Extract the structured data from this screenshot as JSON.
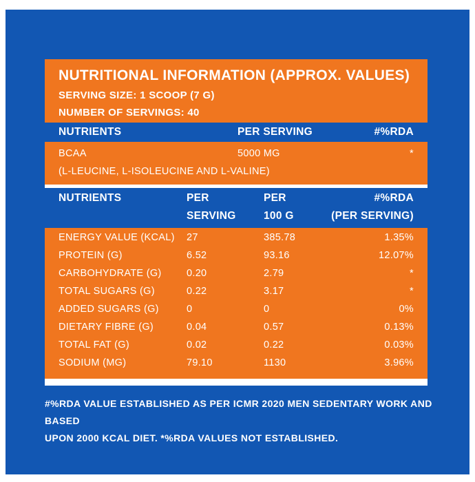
{
  "header": {
    "title": "NUTRITIONAL INFORMATION (APPROX. VALUES)",
    "serving_size": "SERVING SIZE: 1 SCOOP (7 G)",
    "servings": "NUMBER OF SERVINGS: 40"
  },
  "bcaa_table": {
    "headers": {
      "nutrients": "NUTRIENTS",
      "per_serving": "PER SERVING",
      "rda": "#%RDA"
    },
    "row": {
      "name": "BCAA",
      "value": "5000 MG",
      "rda": "*",
      "detail": "(L-LEUCINE, L-ISOLEUCINE AND L-VALINE)"
    }
  },
  "main_table": {
    "headers": {
      "nutrients": "NUTRIENTS",
      "per_serving_1": "PER",
      "per_serving_2": "SERVING",
      "per100_1": "PER",
      "per100_2": "100 G",
      "rda_1": "#%RDA",
      "rda_2": "(PER SERVING)"
    },
    "rows": [
      {
        "name": "ENERGY VALUE (KCAL)",
        "serving": "27",
        "per100": "385.78",
        "rda": "1.35%"
      },
      {
        "name": "PROTEIN (G)",
        "serving": "6.52",
        "per100": "93.16",
        "rda": "12.07%"
      },
      {
        "name": "CARBOHYDRATE (G)",
        "serving": "0.20",
        "per100": "2.79",
        "rda": "*"
      },
      {
        "name": "TOTAL SUGARS (G)",
        "serving": "0.22",
        "per100": "3.17",
        "rda": "*"
      },
      {
        "name": "ADDED SUGARS (G)",
        "serving": "0",
        "per100": "0",
        "rda": "0%"
      },
      {
        "name": "DIETARY FIBRE (G)",
        "serving": "0.04",
        "per100": "0.57",
        "rda": "0.13%"
      },
      {
        "name": "TOTAL FAT (G)",
        "serving": "0.02",
        "per100": "0.22",
        "rda": "0.03%"
      },
      {
        "name": "SODIUM (MG)",
        "serving": "79.10",
        "per100": "1130",
        "rda": "3.96%"
      }
    ]
  },
  "footnote": {
    "line1": "#%RDA VALUE ESTABLISHED AS PER ICMR 2020 MEN SEDENTARY WORK AND BASED",
    "line2": "UPON 2000 KCAL DIET. *%RDA VALUES NOT ESTABLISHED."
  },
  "colors": {
    "blue": "#1257b3",
    "orange": "#f0761f"
  }
}
